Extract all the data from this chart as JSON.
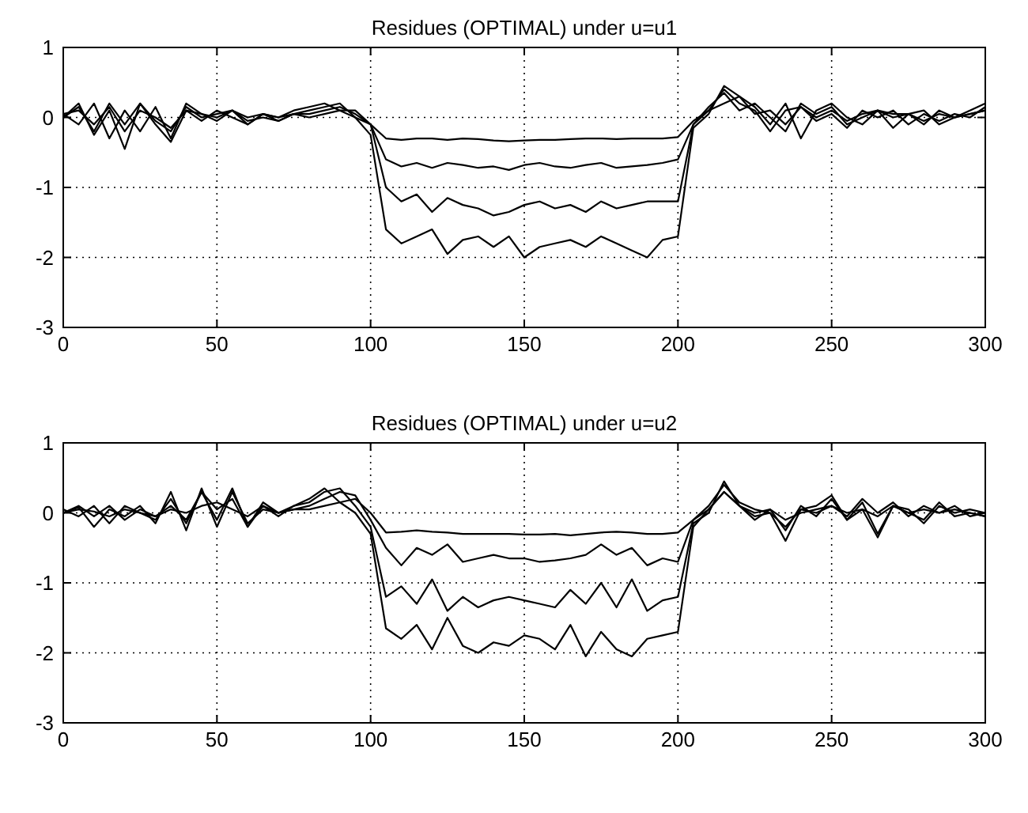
{
  "chart_data": [
    {
      "type": "line",
      "title": "Residues (OPTIMAL) under u=u1",
      "x": [
        0,
        5,
        10,
        15,
        20,
        25,
        30,
        35,
        40,
        45,
        50,
        55,
        60,
        65,
        70,
        75,
        80,
        85,
        90,
        95,
        100,
        105,
        110,
        115,
        120,
        125,
        130,
        135,
        140,
        145,
        150,
        155,
        160,
        165,
        170,
        175,
        180,
        185,
        190,
        195,
        200,
        205,
        210,
        215,
        220,
        225,
        230,
        235,
        240,
        245,
        250,
        255,
        260,
        265,
        270,
        275,
        280,
        285,
        290,
        295,
        300
      ],
      "xlim": [
        0,
        300
      ],
      "xticks": [
        0,
        50,
        100,
        150,
        200,
        250,
        300
      ],
      "ylim": [
        -3,
        1
      ],
      "yticks": [
        -3,
        -2,
        -1,
        0,
        1
      ],
      "grid": true,
      "line_style": "solid",
      "series": [
        {
          "color": "#000000",
          "values": [
            0.05,
            0.1,
            -0.1,
            0.15,
            -0.2,
            0.1,
            0,
            -0.15,
            0.1,
            0.05,
            -0.05,
            0.1,
            0,
            0.05,
            -0.05,
            0.05,
            0,
            0.05,
            0.1,
            0.1,
            -0.1,
            -0.3,
            -0.32,
            -0.3,
            -0.3,
            -0.32,
            -0.3,
            -0.31,
            -0.33,
            -0.34,
            -0.33,
            -0.32,
            -0.32,
            -0.31,
            -0.3,
            -0.3,
            -0.31,
            -0.3,
            -0.3,
            -0.3,
            -0.28,
            -0.05,
            0.1,
            0.2,
            0.3,
            0.05,
            0.1,
            -0.1,
            0.15,
            0,
            0.1,
            -0.05,
            0.05,
            0.1,
            0,
            0.05,
            -0.05,
            0.05,
            0,
            0.1,
            0.2
          ]
        },
        {
          "color": "#000000",
          "values": [
            0,
            0.15,
            -0.2,
            0.2,
            -0.1,
            0.2,
            -0.05,
            -0.2,
            0.15,
            0,
            0.05,
            0.1,
            -0.1,
            0.05,
            0,
            0.05,
            0.05,
            0.1,
            0.15,
            0.05,
            -0.1,
            -0.6,
            -0.7,
            -0.65,
            -0.72,
            -0.65,
            -0.68,
            -0.72,
            -0.7,
            -0.75,
            -0.68,
            -0.65,
            -0.7,
            -0.72,
            -0.68,
            -0.65,
            -0.72,
            -0.7,
            -0.68,
            -0.65,
            -0.6,
            -0.1,
            0.15,
            0.35,
            0.1,
            0.2,
            0,
            -0.2,
            0.2,
            0.05,
            0.15,
            -0.1,
            0,
            0.1,
            0.05,
            0.05,
            -0.1,
            0.1,
            0,
            0.05,
            0.1
          ]
        },
        {
          "color": "#000000",
          "values": [
            0.05,
            -0.1,
            0.2,
            -0.3,
            0.1,
            -0.2,
            0.15,
            -0.3,
            0.2,
            0.05,
            0,
            0.1,
            -0.05,
            0,
            -0.05,
            0.05,
            0.1,
            0.15,
            0.2,
            0,
            -0.1,
            -1.0,
            -1.2,
            -1.1,
            -1.35,
            -1.15,
            -1.25,
            -1.3,
            -1.4,
            -1.35,
            -1.25,
            -1.2,
            -1.3,
            -1.25,
            -1.35,
            -1.2,
            -1.3,
            -1.25,
            -1.2,
            -1.2,
            -1.2,
            -0.1,
            0.1,
            0.4,
            0.2,
            0.1,
            -0.2,
            0.1,
            0.15,
            -0.05,
            0.05,
            -0.15,
            0.1,
            0,
            0.1,
            -0.1,
            0.05,
            -0.05,
            0.05,
            0,
            0.15
          ]
        },
        {
          "color": "#000000",
          "values": [
            0,
            0.2,
            -0.25,
            0.1,
            -0.45,
            0.2,
            -0.1,
            -0.35,
            0.1,
            -0.05,
            0.1,
            0,
            -0.1,
            0.05,
            0,
            0.1,
            0.15,
            0.2,
            0.1,
            0,
            -0.25,
            -1.6,
            -1.8,
            -1.7,
            -1.6,
            -1.95,
            -1.75,
            -1.7,
            -1.85,
            -1.7,
            -2.0,
            -1.85,
            -1.8,
            -1.75,
            -1.85,
            -1.7,
            -1.8,
            -1.9,
            -2.0,
            -1.75,
            -1.7,
            -0.15,
            0.05,
            0.45,
            0.3,
            0.15,
            -0.1,
            0.2,
            -0.3,
            0.1,
            0.2,
            0,
            -0.1,
            0.1,
            -0.15,
            0.05,
            0.1,
            -0.1,
            0,
            0.05,
            0.1
          ]
        }
      ]
    },
    {
      "type": "line",
      "title": "Residues (OPTIMAL) under u=u2",
      "x": [
        0,
        5,
        10,
        15,
        20,
        25,
        30,
        35,
        40,
        45,
        50,
        55,
        60,
        65,
        70,
        75,
        80,
        85,
        90,
        95,
        100,
        105,
        110,
        115,
        120,
        125,
        130,
        135,
        140,
        145,
        150,
        155,
        160,
        165,
        170,
        175,
        180,
        185,
        190,
        195,
        200,
        205,
        210,
        215,
        220,
        225,
        230,
        235,
        240,
        245,
        250,
        255,
        260,
        265,
        270,
        275,
        280,
        285,
        290,
        295,
        300
      ],
      "xlim": [
        0,
        300
      ],
      "xticks": [
        0,
        50,
        100,
        150,
        200,
        250,
        300
      ],
      "ylim": [
        -3,
        1
      ],
      "yticks": [
        -3,
        -2,
        -1,
        0,
        1
      ],
      "grid": true,
      "line_style": "solid",
      "series": [
        {
          "color": "#000000",
          "values": [
            0,
            0.05,
            0.02,
            -0.05,
            0.05,
            0,
            -0.05,
            0.05,
            0,
            0.1,
            0.15,
            0.05,
            -0.05,
            0.1,
            0,
            0.05,
            0.05,
            0.1,
            0.15,
            0.2,
            0,
            -0.28,
            -0.27,
            -0.25,
            -0.27,
            -0.28,
            -0.3,
            -0.3,
            -0.3,
            -0.3,
            -0.31,
            -0.31,
            -0.3,
            -0.32,
            -0.3,
            -0.28,
            -0.27,
            -0.28,
            -0.3,
            -0.3,
            -0.28,
            -0.1,
            0.05,
            0.3,
            0.1,
            0,
            0.05,
            -0.1,
            0,
            0.05,
            0.1,
            0,
            0.05,
            -0.05,
            0.1,
            0,
            0.05,
            0,
            0.05,
            0,
            -0.05
          ]
        },
        {
          "color": "#000000",
          "values": [
            0,
            0.1,
            -0.05,
            0.1,
            -0.1,
            0.05,
            -0.05,
            0.1,
            -0.1,
            0.3,
            0.05,
            0.2,
            -0.2,
            0.15,
            0,
            0.05,
            0.1,
            0.2,
            0.3,
            0.25,
            -0.1,
            -0.5,
            -0.75,
            -0.5,
            -0.6,
            -0.45,
            -0.7,
            -0.65,
            -0.6,
            -0.65,
            -0.65,
            -0.7,
            -0.68,
            -0.65,
            -0.6,
            -0.45,
            -0.6,
            -0.5,
            -0.75,
            -0.65,
            -0.7,
            -0.1,
            0.1,
            0.4,
            0.15,
            0.05,
            0,
            -0.2,
            0.05,
            0,
            0.1,
            -0.05,
            0.2,
            0,
            0.15,
            -0.05,
            0.1,
            0,
            0.1,
            -0.05,
            0
          ]
        },
        {
          "color": "#000000",
          "values": [
            0.05,
            -0.05,
            0.1,
            -0.15,
            0.1,
            0,
            -0.1,
            0.2,
            -0.15,
            0.3,
            -0.1,
            0.35,
            -0.2,
            0.1,
            -0.05,
            0.1,
            0.15,
            0.3,
            0.35,
            0.1,
            -0.2,
            -1.2,
            -1.05,
            -1.3,
            -0.95,
            -1.4,
            -1.2,
            -1.35,
            -1.25,
            -1.2,
            -1.25,
            -1.3,
            -1.35,
            -1.1,
            -1.3,
            -1.0,
            -1.35,
            -0.95,
            -1.4,
            -1.25,
            -1.2,
            -0.15,
            0,
            0.45,
            0.1,
            -0.1,
            0.05,
            -0.25,
            0.1,
            -0.05,
            0.2,
            -0.1,
            0.15,
            -0.3,
            0.1,
            0.05,
            -0.15,
            0.1,
            0,
            0.05,
            0
          ]
        },
        {
          "color": "#000000",
          "values": [
            0,
            0.08,
            -0.2,
            0.05,
            -0.05,
            0.1,
            -0.15,
            0.3,
            -0.25,
            0.35,
            -0.2,
            0.3,
            -0.15,
            0.05,
            0,
            0.1,
            0.2,
            0.35,
            0.15,
            0,
            -0.3,
            -1.65,
            -1.8,
            -1.6,
            -1.95,
            -1.5,
            -1.9,
            -2.0,
            -1.85,
            -1.9,
            -1.75,
            -1.8,
            -1.95,
            -1.6,
            -2.05,
            -1.7,
            -1.95,
            -2.05,
            -1.8,
            -1.75,
            -1.7,
            -0.2,
            0.05,
            0.3,
            0.1,
            -0.05,
            0,
            -0.4,
            0.05,
            0.1,
            0.25,
            -0.1,
            0.05,
            -0.35,
            0.1,
            0,
            -0.1,
            0.15,
            -0.05,
            0,
            -0.05
          ]
        }
      ]
    }
  ]
}
